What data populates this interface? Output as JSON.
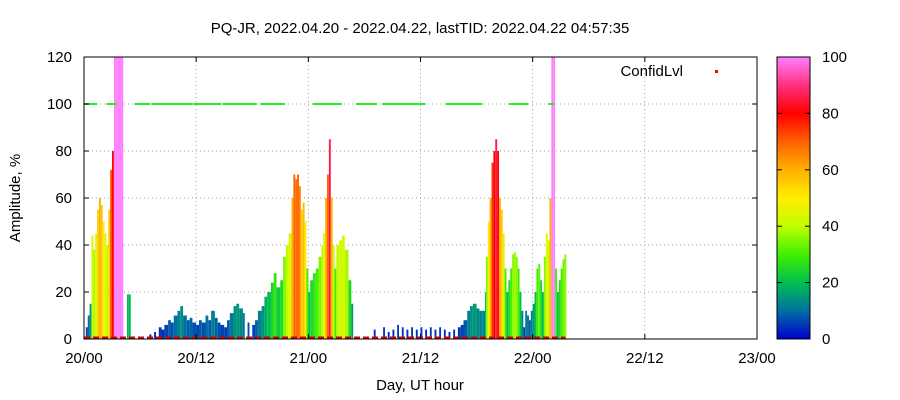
{
  "chart_data": {
    "type": "bar",
    "title": "PQ-JR, 2022.04.20 - 2022.04.22, lastTID: 2022.04.22 04:57:35",
    "xlabel": "Day, UT hour",
    "ylabel": "Amplitude, %",
    "x_unit": "hours since 20/00",
    "xlim": [
      0,
      72
    ],
    "ylim": [
      0,
      120
    ],
    "x_ticks": [
      {
        "value": 0,
        "label": "20/00"
      },
      {
        "value": 12,
        "label": "20/12"
      },
      {
        "value": 24,
        "label": "21/00"
      },
      {
        "value": 36,
        "label": "21/12"
      },
      {
        "value": 48,
        "label": "22/00"
      },
      {
        "value": 60,
        "label": "22/12"
      },
      {
        "value": 72,
        "label": "23/00"
      }
    ],
    "y_ticks": [
      "0",
      "20",
      "40",
      "60",
      "80",
      "100",
      "120"
    ],
    "grid": true,
    "legend": {
      "label": "ConfidLvl",
      "position": "top-right"
    },
    "colorbar": {
      "min": 0,
      "max": 100,
      "ticks": [
        "0",
        "20",
        "40",
        "60",
        "80",
        "100"
      ]
    },
    "series": [
      {
        "name": "Amplitude",
        "points": [
          [
            0.2,
            5
          ],
          [
            0.4,
            10
          ],
          [
            0.6,
            15
          ],
          [
            0.8,
            44
          ],
          [
            1.0,
            38
          ],
          [
            1.2,
            45
          ],
          [
            1.4,
            55
          ],
          [
            1.6,
            60
          ],
          [
            1.8,
            57
          ],
          [
            2.0,
            50
          ],
          [
            2.2,
            45
          ],
          [
            2.4,
            40
          ],
          [
            2.6,
            55
          ],
          [
            2.8,
            72
          ],
          [
            3.0,
            80
          ],
          [
            3.2,
            120
          ],
          [
            3.4,
            120
          ],
          [
            3.6,
            120
          ],
          [
            3.8,
            120
          ],
          [
            4.0,
            120
          ],
          [
            4.6,
            19
          ],
          [
            4.8,
            19
          ],
          [
            7.0,
            2
          ],
          [
            7.5,
            3
          ],
          [
            8.0,
            5
          ],
          [
            8.3,
            4
          ],
          [
            8.6,
            6
          ],
          [
            9.0,
            8
          ],
          [
            9.3,
            7
          ],
          [
            9.6,
            10
          ],
          [
            10.0,
            12
          ],
          [
            10.3,
            14
          ],
          [
            10.6,
            10
          ],
          [
            11.0,
            8
          ],
          [
            11.3,
            9
          ],
          [
            11.6,
            7
          ],
          [
            12.0,
            6
          ],
          [
            12.3,
            8
          ],
          [
            12.6,
            7
          ],
          [
            13.0,
            10
          ],
          [
            13.3,
            8
          ],
          [
            13.6,
            12
          ],
          [
            14.0,
            9
          ],
          [
            14.3,
            7
          ],
          [
            14.6,
            6
          ],
          [
            15.0,
            5
          ],
          [
            15.3,
            8
          ],
          [
            15.6,
            11
          ],
          [
            16.0,
            14
          ],
          [
            16.3,
            15
          ],
          [
            16.6,
            13
          ],
          [
            17.0,
            11
          ],
          [
            17.5,
            7
          ],
          [
            18.0,
            6
          ],
          [
            18.3,
            8
          ],
          [
            18.6,
            12
          ],
          [
            19.0,
            14
          ],
          [
            19.3,
            18
          ],
          [
            19.6,
            20
          ],
          [
            20.0,
            24
          ],
          [
            20.3,
            28
          ],
          [
            20.6,
            22
          ],
          [
            21.0,
            25
          ],
          [
            21.3,
            35
          ],
          [
            21.6,
            40
          ],
          [
            21.9,
            45
          ],
          [
            22.2,
            60
          ],
          [
            22.4,
            70
          ],
          [
            22.6,
            68
          ],
          [
            22.8,
            70
          ],
          [
            23.0,
            65
          ],
          [
            23.2,
            55
          ],
          [
            23.4,
            58
          ],
          [
            23.6,
            50
          ],
          [
            23.8,
            30
          ],
          [
            24.0,
            20
          ],
          [
            24.2,
            25
          ],
          [
            24.5,
            28
          ],
          [
            24.8,
            30
          ],
          [
            25.1,
            35
          ],
          [
            25.4,
            40
          ],
          [
            25.6,
            45
          ],
          [
            25.8,
            60
          ],
          [
            26.0,
            70
          ],
          [
            26.2,
            85
          ],
          [
            26.4,
            60
          ],
          [
            26.6,
            40
          ],
          [
            26.8,
            30
          ],
          [
            27.0,
            40
          ],
          [
            27.3,
            42
          ],
          [
            27.6,
            44
          ],
          [
            27.9,
            38
          ],
          [
            28.3,
            25
          ],
          [
            28.6,
            15
          ],
          [
            31.0,
            4
          ],
          [
            32.0,
            5
          ],
          [
            32.5,
            3
          ],
          [
            33.0,
            4
          ],
          [
            33.5,
            6
          ],
          [
            34.0,
            5
          ],
          [
            34.5,
            4
          ],
          [
            35.0,
            5
          ],
          [
            35.5,
            4
          ],
          [
            36.0,
            5
          ],
          [
            36.5,
            4
          ],
          [
            37.0,
            5
          ],
          [
            37.5,
            4
          ],
          [
            38.0,
            5
          ],
          [
            38.5,
            4
          ],
          [
            39.0,
            3
          ],
          [
            39.5,
            4
          ],
          [
            40.0,
            5
          ],
          [
            40.3,
            6
          ],
          [
            40.6,
            8
          ],
          [
            41.0,
            12
          ],
          [
            41.3,
            14
          ],
          [
            41.6,
            15
          ],
          [
            42.0,
            13
          ],
          [
            42.3,
            12
          ],
          [
            42.6,
            12
          ],
          [
            42.9,
            20
          ],
          [
            43.0,
            35
          ],
          [
            43.2,
            50
          ],
          [
            43.4,
            60
          ],
          [
            43.6,
            75
          ],
          [
            43.8,
            80
          ],
          [
            44.0,
            85
          ],
          [
            44.2,
            80
          ],
          [
            44.4,
            60
          ],
          [
            44.6,
            55
          ],
          [
            44.8,
            45
          ],
          [
            45.0,
            30
          ],
          [
            45.2,
            20
          ],
          [
            45.4,
            25
          ],
          [
            45.6,
            30
          ],
          [
            45.8,
            36
          ],
          [
            46.0,
            37
          ],
          [
            46.2,
            35
          ],
          [
            46.4,
            30
          ],
          [
            46.6,
            20
          ],
          [
            46.8,
            12
          ],
          [
            47.0,
            5
          ],
          [
            47.2,
            12
          ],
          [
            47.4,
            10
          ],
          [
            47.6,
            8
          ],
          [
            47.8,
            12
          ],
          [
            48.0,
            15
          ],
          [
            48.2,
            20
          ],
          [
            48.4,
            30
          ],
          [
            48.6,
            32
          ],
          [
            48.8,
            25
          ],
          [
            49.0,
            20
          ],
          [
            49.2,
            35
          ],
          [
            49.4,
            45
          ],
          [
            49.6,
            42
          ],
          [
            49.8,
            60
          ],
          [
            50.0,
            120
          ],
          [
            50.2,
            120
          ],
          [
            50.4,
            30
          ],
          [
            50.6,
            20
          ],
          [
            50.8,
            25
          ],
          [
            51.0,
            30
          ],
          [
            51.2,
            34
          ],
          [
            51.4,
            36
          ]
        ]
      }
    ],
    "confidence": {
      "name": "ConfidLvl",
      "value": 100,
      "segments": [
        [
          0.0,
          1.4
        ],
        [
          2.5,
          3.5
        ],
        [
          5.5,
          7.0
        ],
        [
          7.3,
          11.5
        ],
        [
          11.8,
          14.6
        ],
        [
          14.9,
          18.5
        ],
        [
          19.0,
          21.5
        ],
        [
          24.6,
          27.5
        ],
        [
          29.2,
          31.3
        ],
        [
          32.0,
          36.5
        ],
        [
          38.8,
          42.6
        ],
        [
          45.6,
          47.5
        ],
        [
          49.8,
          50.2
        ]
      ]
    }
  }
}
